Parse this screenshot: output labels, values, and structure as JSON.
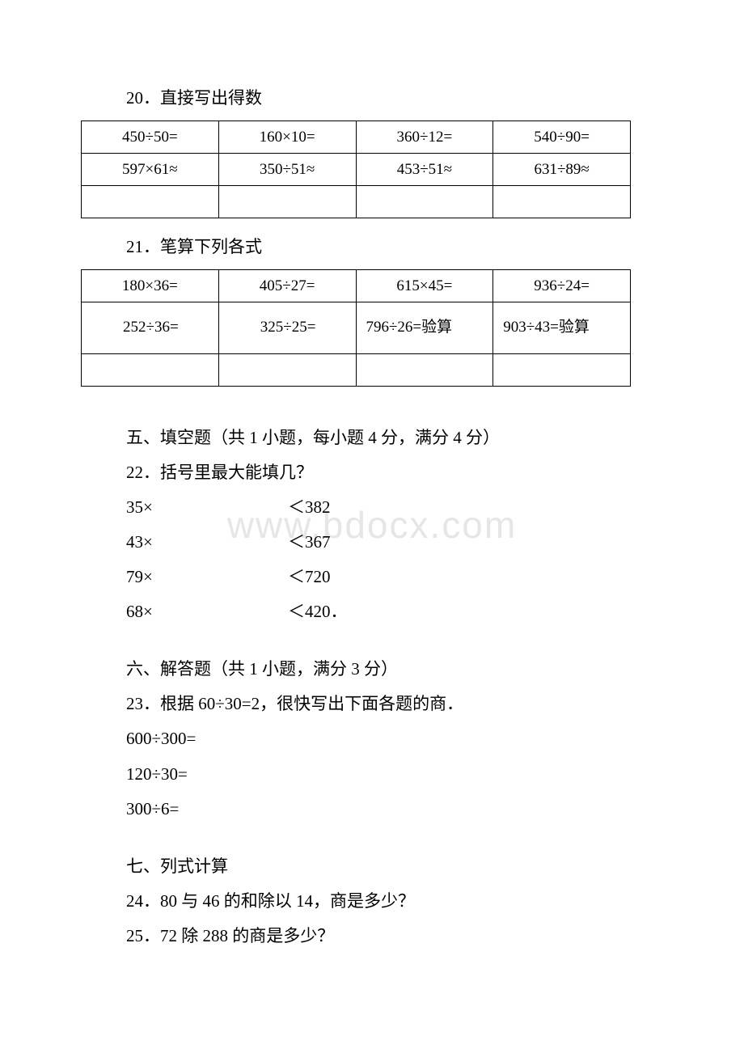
{
  "watermark": "www.bdocx.com",
  "q20": {
    "title": "20．直接写出得数",
    "rows": [
      [
        "450÷50=",
        "160×10=",
        "360÷12=",
        "540÷90="
      ],
      [
        "597×61≈",
        "350÷51≈",
        "453÷51≈",
        "631÷89≈"
      ],
      [
        "",
        "",
        "",
        ""
      ]
    ]
  },
  "q21": {
    "title": "21．笔算下列各式",
    "rows": [
      [
        "180×36=",
        "405÷27=",
        "615×45=",
        "936÷24="
      ],
      [
        "252÷36=",
        "325÷25=",
        "796÷26=验算",
        "903÷43=验算"
      ],
      [
        "",
        "",
        "",
        ""
      ]
    ]
  },
  "sec5": {
    "heading": "五、填空题（共 1 小题，每小题 4 分，满分 4 分）",
    "q": "22．括号里最大能填几？",
    "items": [
      {
        "left": "35×",
        "right": "＜382"
      },
      {
        "left": "43×",
        "right": "＜367"
      },
      {
        "left": "79×",
        "right": "＜720"
      },
      {
        "left": "68×",
        "right": "＜420．"
      }
    ]
  },
  "sec6": {
    "heading": "六、解答题（共 1 小题，满分 3 分）",
    "q": "23．根据 60÷30=2，很快写出下面各题的商．",
    "items": [
      "600÷300=",
      "120÷30=",
      "300÷6="
    ]
  },
  "sec7": {
    "heading": "七、列式计算",
    "q24": "24．80 与 46 的和除以 14，商是多少？",
    "q25": "25．72 除 288 的商是多少？"
  }
}
